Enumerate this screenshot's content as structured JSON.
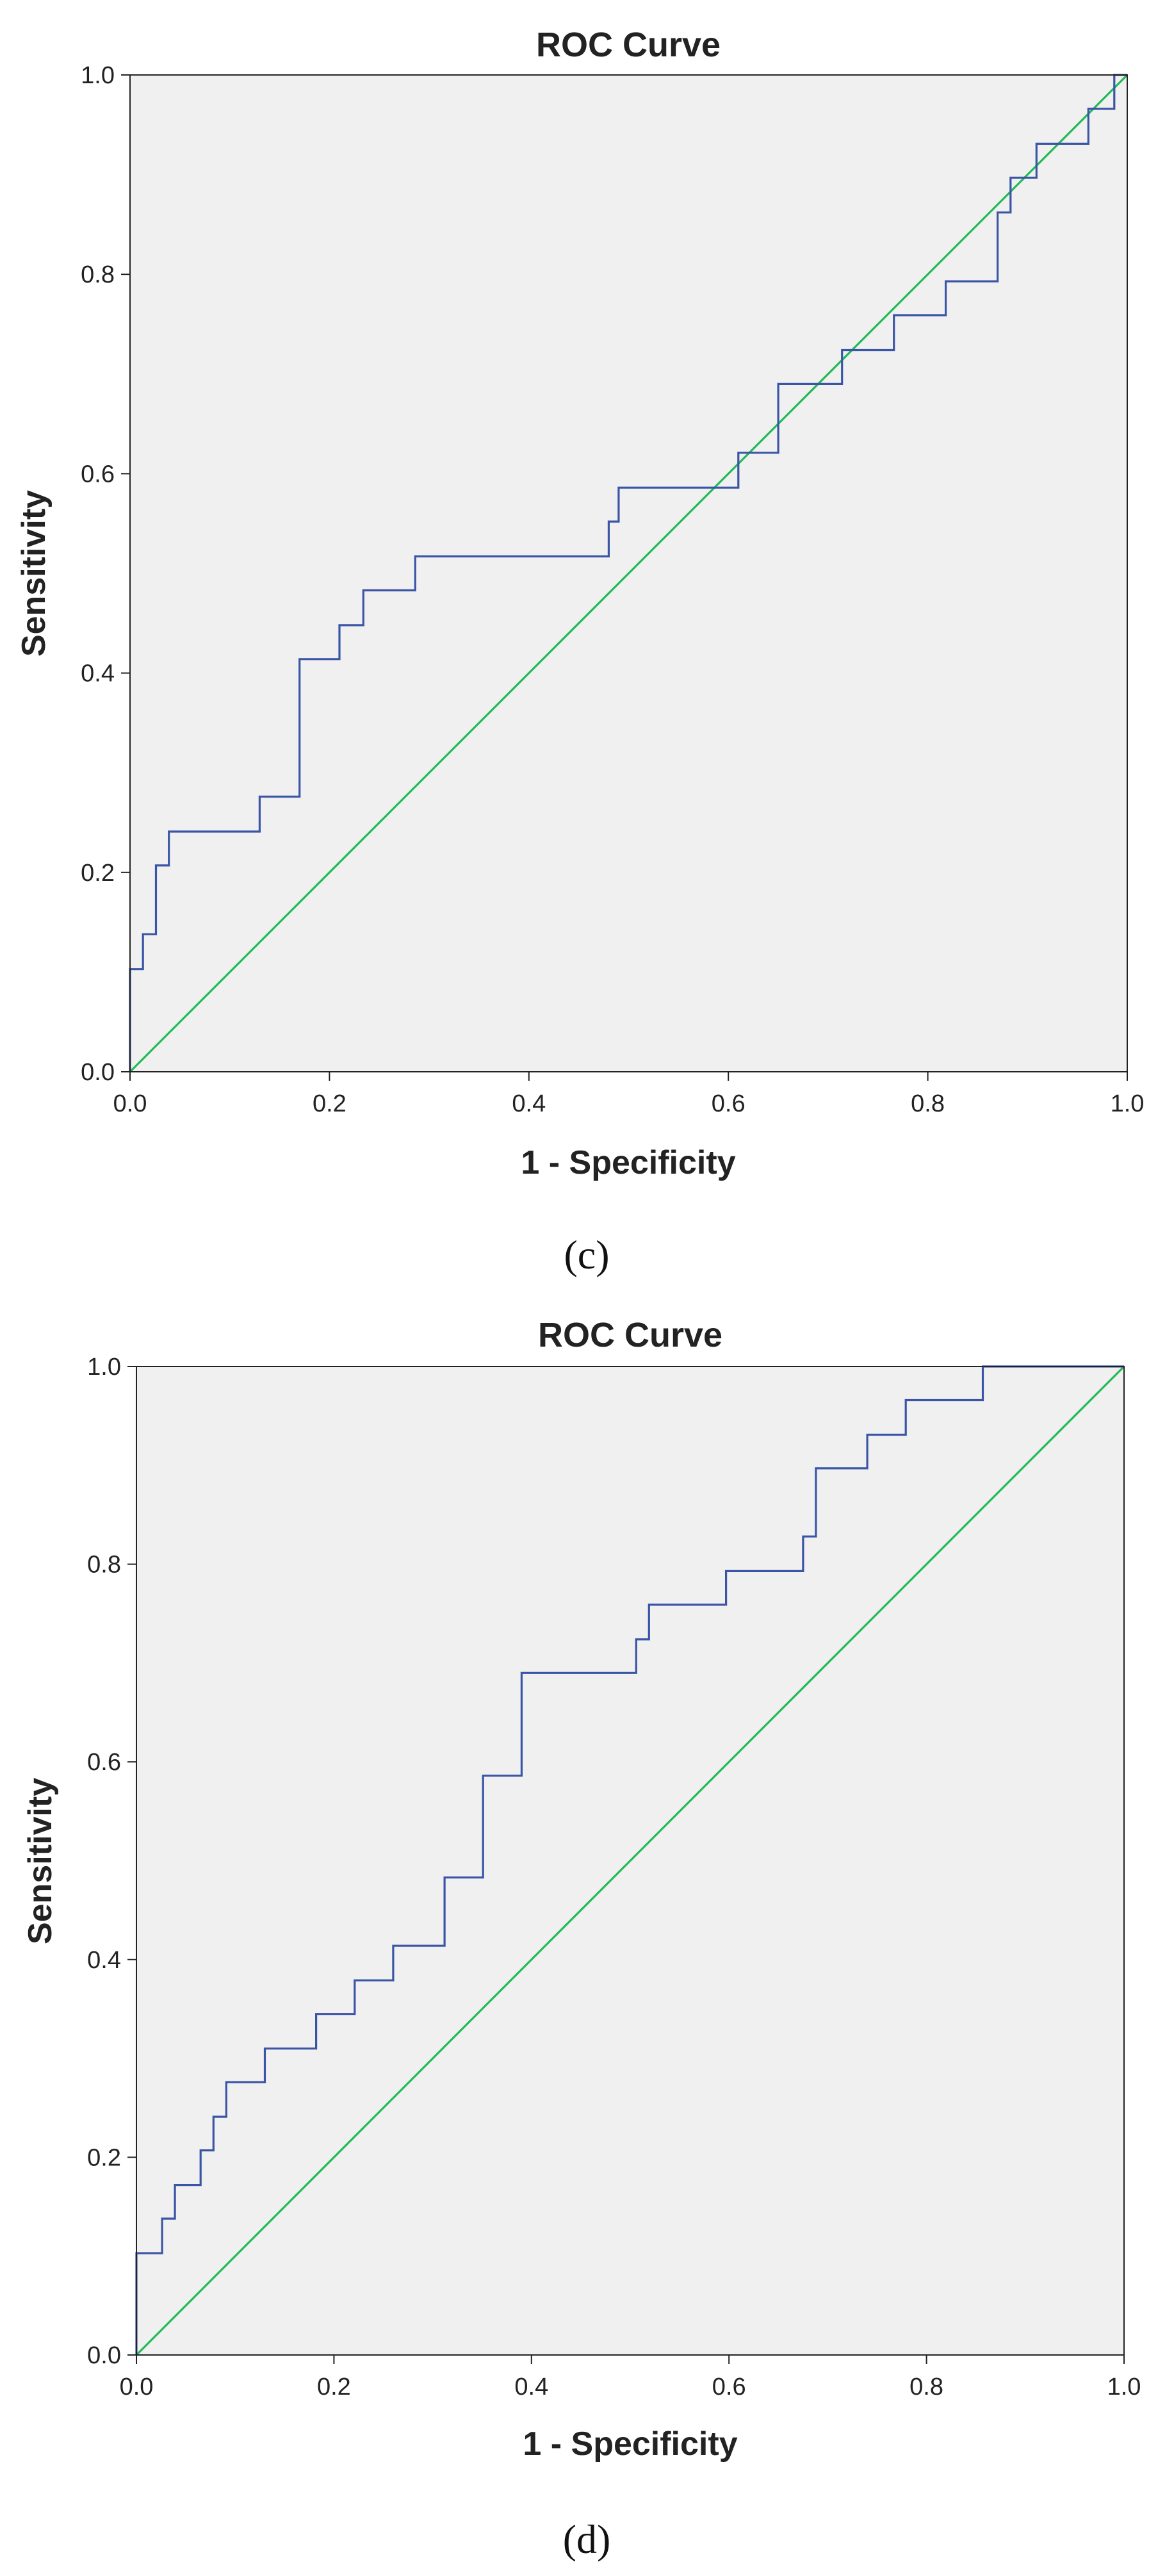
{
  "chart_data": [
    {
      "type": "line",
      "panel_label": "(c)",
      "title": "ROC Curve",
      "xlabel": "1 - Specificity",
      "ylabel": "Sensitivity",
      "xlim": [
        0,
        1
      ],
      "ylim": [
        0,
        1
      ],
      "xticks": [
        "0.0",
        "0.2",
        "0.4",
        "0.6",
        "0.8",
        "1.0"
      ],
      "yticks": [
        "0.0",
        "0.2",
        "0.4",
        "0.6",
        "0.8",
        "1.0"
      ],
      "grid": false,
      "series": [
        {
          "name": "ROC",
          "color": "#3a55a6",
          "step": true,
          "x": [
            0.0,
            0.0,
            0.013,
            0.013,
            0.026,
            0.026,
            0.039,
            0.039,
            0.13,
            0.13,
            0.17,
            0.17,
            0.21,
            0.21,
            0.234,
            0.234,
            0.286,
            0.286,
            0.48,
            0.48,
            0.49,
            0.49,
            0.61,
            0.61,
            0.65,
            0.65,
            0.714,
            0.714,
            0.766,
            0.766,
            0.818,
            0.818,
            0.87,
            0.87,
            0.883,
            0.883,
            0.909,
            0.909,
            0.961,
            0.961,
            0.987,
            0.987,
            1.0
          ],
          "y": [
            0.0,
            0.103,
            0.103,
            0.138,
            0.138,
            0.207,
            0.207,
            0.241,
            0.241,
            0.276,
            0.276,
            0.414,
            0.414,
            0.448,
            0.448,
            0.483,
            0.483,
            0.517,
            0.517,
            0.552,
            0.552,
            0.586,
            0.586,
            0.621,
            0.621,
            0.69,
            0.69,
            0.724,
            0.724,
            0.759,
            0.759,
            0.793,
            0.793,
            0.862,
            0.862,
            0.897,
            0.897,
            0.931,
            0.931,
            0.966,
            0.966,
            1.0,
            1.0
          ]
        },
        {
          "name": "Reference Line",
          "color": "#22bb55",
          "step": false,
          "x": [
            0.0,
            1.0
          ],
          "y": [
            0.0,
            1.0
          ]
        }
      ]
    },
    {
      "type": "line",
      "panel_label": "(d)",
      "title": "ROC Curve",
      "xlabel": "1 - Specificity",
      "ylabel": "Sensitivity",
      "xlim": [
        0,
        1
      ],
      "ylim": [
        0,
        1
      ],
      "xticks": [
        "0.0",
        "0.2",
        "0.4",
        "0.6",
        "0.8",
        "1.0"
      ],
      "yticks": [
        "0.0",
        "0.2",
        "0.4",
        "0.6",
        "0.8",
        "1.0"
      ],
      "grid": false,
      "series": [
        {
          "name": "ROC",
          "color": "#3a55a6",
          "step": true,
          "x": [
            0.0,
            0.0,
            0.026,
            0.026,
            0.039,
            0.039,
            0.065,
            0.065,
            0.078,
            0.078,
            0.091,
            0.091,
            0.13,
            0.13,
            0.182,
            0.182,
            0.221,
            0.221,
            0.26,
            0.26,
            0.312,
            0.312,
            0.351,
            0.351,
            0.39,
            0.39,
            0.506,
            0.506,
            0.519,
            0.519,
            0.597,
            0.597,
            0.675,
            0.675,
            0.688,
            0.688,
            0.74,
            0.74,
            0.779,
            0.779,
            0.857,
            0.857,
            1.0
          ],
          "y": [
            0.0,
            0.103,
            0.103,
            0.138,
            0.138,
            0.172,
            0.172,
            0.207,
            0.207,
            0.241,
            0.241,
            0.276,
            0.276,
            0.31,
            0.31,
            0.345,
            0.345,
            0.379,
            0.379,
            0.414,
            0.414,
            0.483,
            0.483,
            0.586,
            0.586,
            0.69,
            0.69,
            0.724,
            0.724,
            0.759,
            0.759,
            0.793,
            0.793,
            0.828,
            0.828,
            0.897,
            0.897,
            0.931,
            0.931,
            0.966,
            0.966,
            1.0,
            1.0
          ]
        },
        {
          "name": "Reference Line",
          "color": "#22bb55",
          "step": false,
          "x": [
            0.0,
            1.0
          ],
          "y": [
            0.0,
            1.0
          ]
        }
      ]
    }
  ]
}
